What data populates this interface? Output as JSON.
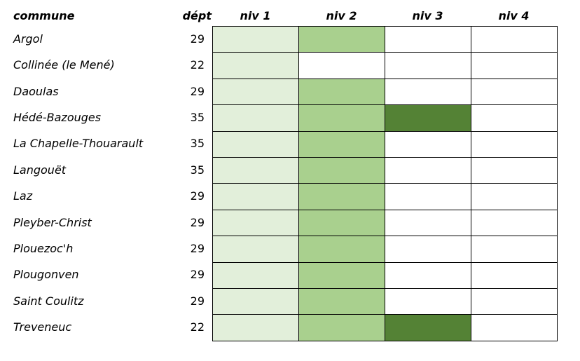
{
  "table": {
    "header": {
      "commune": "commune",
      "dept": "dépt",
      "levels": [
        "niv 1",
        "niv 2",
        "niv 3",
        "niv 4"
      ]
    },
    "level_colors": [
      "#e2efda",
      "#a9d08e",
      "#548235"
    ],
    "rows": [
      {
        "commune": "Argol",
        "dept": 29,
        "level": 2
      },
      {
        "commune": "Collinée (le Mené)",
        "dept": 22,
        "level": 1
      },
      {
        "commune": "Daoulas",
        "dept": 29,
        "level": 2
      },
      {
        "commune": "Hédé-Bazouges",
        "dept": 35,
        "level": 3
      },
      {
        "commune": "La Chapelle-Thouarault",
        "dept": 35,
        "level": 2
      },
      {
        "commune": "Langouët",
        "dept": 35,
        "level": 2
      },
      {
        "commune": "Laz",
        "dept": 29,
        "level": 2
      },
      {
        "commune": "Pleyber-Christ",
        "dept": 29,
        "level": 2
      },
      {
        "commune": "Plouezoc'h",
        "dept": 29,
        "level": 2
      },
      {
        "commune": "Plougonven",
        "dept": 29,
        "level": 2
      },
      {
        "commune": "Saint Coulitz",
        "dept": 29,
        "level": 2
      },
      {
        "commune": "Treveneuc",
        "dept": 22,
        "level": 3
      }
    ]
  }
}
